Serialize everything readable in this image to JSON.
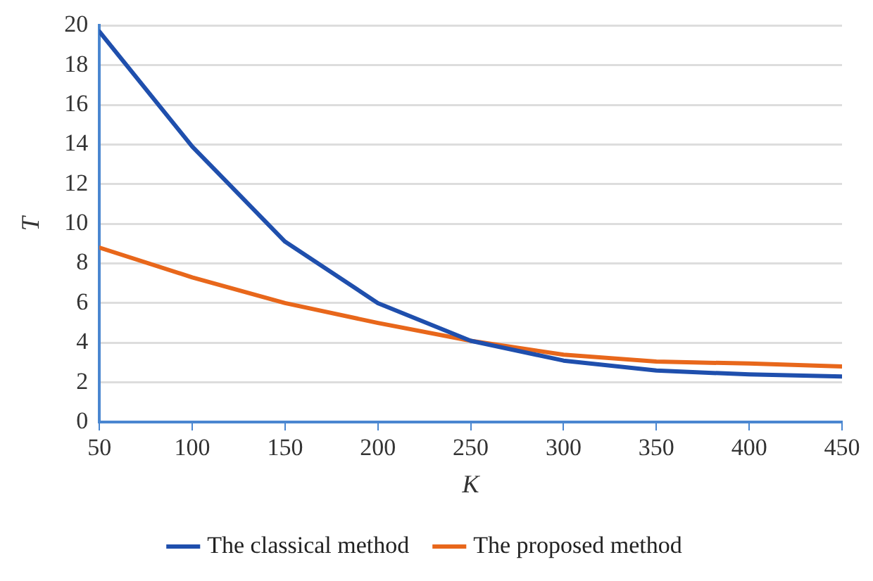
{
  "chart_data": {
    "type": "line",
    "xlabel": "K",
    "ylabel": "T",
    "x": [
      50,
      100,
      150,
      200,
      250,
      300,
      350,
      400,
      450
    ],
    "xlim": [
      50,
      450
    ],
    "xticks": [
      50,
      100,
      150,
      200,
      250,
      300,
      350,
      400,
      450
    ],
    "ylim": [
      0,
      20
    ],
    "yticks": [
      0,
      2,
      4,
      6,
      8,
      10,
      12,
      14,
      16,
      18,
      20
    ],
    "grid": "y",
    "legend": "bottom",
    "series": [
      {
        "name": "The classical method",
        "color": "#1f4fad",
        "values": [
          19.7,
          13.9,
          9.1,
          6.0,
          4.1,
          3.1,
          2.6,
          2.4,
          2.3
        ]
      },
      {
        "name": "The proposed method",
        "color": "#e8671b",
        "values": [
          8.8,
          7.3,
          6.0,
          5.0,
          4.1,
          3.4,
          3.05,
          2.95,
          2.8
        ]
      }
    ]
  }
}
